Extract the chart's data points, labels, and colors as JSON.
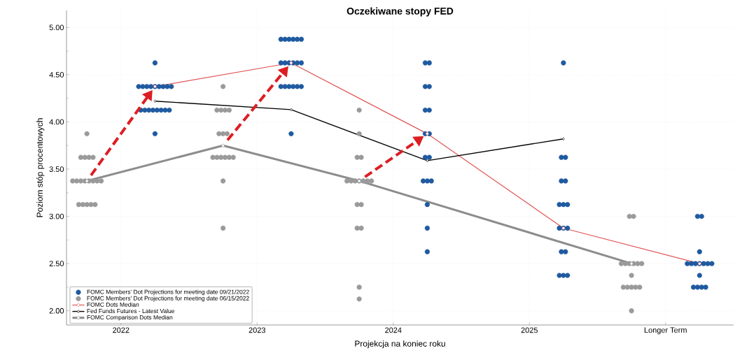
{
  "chart_data": {
    "type": "scatter",
    "title": "Oczekiwane stopy FED",
    "xlabel": "Projekcja na koniec roku",
    "ylabel": "Poziom stóp procentowych",
    "xlim": [
      2021.6,
      2026.5
    ],
    "ylim": [
      1.85,
      5.18
    ],
    "xticks": [
      2022,
      2023,
      2024,
      2025,
      {
        "value": 2026,
        "label": "Longer Term"
      }
    ],
    "yticks": [
      {
        "value": 2,
        "label": "2.00"
      },
      {
        "value": 2.5,
        "label": "2.50"
      },
      {
        "value": 3,
        "label": "3.00"
      },
      {
        "value": 3.5,
        "label": "3.50"
      },
      {
        "value": 4,
        "label": "4.00"
      },
      {
        "value": 4.5,
        "label": "4.50"
      },
      {
        "value": 5,
        "label": "5.00"
      }
    ],
    "grid": true,
    "legend": "bottom left",
    "series": [
      {
        "name": "FOMC Members' Dot Projections for meeting date 09/21/2022",
        "marker": "circle",
        "color": "#1f5aa0",
        "x": [
          2022.25,
          2022.13,
          2022.16,
          2022.19,
          2022.22,
          2022.25,
          2022.28,
          2022.31,
          2022.34,
          2022.37,
          2022.145,
          2022.175,
          2022.205,
          2022.235,
          2022.265,
          2022.295,
          2022.325,
          2022.355,
          2022.25,
          2023.175,
          2023.205,
          2023.235,
          2023.265,
          2023.295,
          2023.325,
          2023.175,
          2023.205,
          2023.235,
          2023.265,
          2023.295,
          2023.325,
          2023.175,
          2023.205,
          2023.235,
          2023.265,
          2023.295,
          2023.325,
          2023.25,
          2024.235,
          2024.265,
          2024.235,
          2024.265,
          2024.235,
          2024.265,
          2024.235,
          2024.265,
          2024.235,
          2024.265,
          2024.22,
          2024.25,
          2024.28,
          2024.25,
          2024.25,
          2024.25,
          2025.25,
          2025.235,
          2025.265,
          2025.235,
          2025.265,
          2025.22,
          2025.25,
          2025.28,
          2025.22,
          2025.25,
          2025.28,
          2025.235,
          2025.265,
          2025.22,
          2025.25,
          2025.28,
          2026.235,
          2026.265,
          2026.25,
          2026.16,
          2026.19,
          2026.22,
          2026.25,
          2026.28,
          2026.31,
          2026.34,
          2026.25,
          2026.205,
          2026.235,
          2026.265,
          2026.295
        ],
        "values": [
          4.625,
          4.375,
          4.375,
          4.375,
          4.375,
          4.375,
          4.375,
          4.375,
          4.375,
          4.375,
          4.125,
          4.125,
          4.125,
          4.125,
          4.125,
          4.125,
          4.125,
          4.125,
          3.875,
          4.875,
          4.875,
          4.875,
          4.875,
          4.875,
          4.875,
          4.625,
          4.625,
          4.625,
          4.625,
          4.625,
          4.625,
          4.375,
          4.375,
          4.375,
          4.375,
          4.375,
          4.375,
          3.875,
          4.625,
          4.625,
          4.375,
          4.375,
          4.125,
          4.125,
          3.875,
          3.875,
          3.625,
          3.625,
          3.375,
          3.375,
          3.375,
          3.125,
          2.875,
          2.625,
          4.625,
          3.625,
          3.625,
          3.375,
          3.375,
          3.125,
          3.125,
          3.125,
          2.875,
          2.875,
          2.875,
          2.625,
          2.625,
          2.375,
          2.375,
          2.375,
          3.0,
          3.0,
          2.625,
          2.5,
          2.5,
          2.5,
          2.5,
          2.5,
          2.5,
          2.5,
          2.375,
          2.25,
          2.25,
          2.25,
          2.25
        ]
      },
      {
        "name": "FOMC Members' Dot Projections for meeting date 06/15/2022",
        "marker": "circle",
        "color": "#9a9a9a",
        "x": [
          2021.75,
          2021.705,
          2021.735,
          2021.765,
          2021.795,
          2021.645,
          2021.675,
          2021.705,
          2021.735,
          2021.765,
          2021.795,
          2021.825,
          2021.855,
          2021.69,
          2021.72,
          2021.75,
          2021.78,
          2021.81,
          2022.75,
          2022.705,
          2022.735,
          2022.765,
          2022.795,
          2022.72,
          2022.75,
          2022.78,
          2022.675,
          2022.705,
          2022.735,
          2022.765,
          2022.795,
          2022.825,
          2022.75,
          2022.75,
          2023.75,
          2023.75,
          2023.735,
          2023.765,
          2023.66,
          2023.69,
          2023.72,
          2023.75,
          2023.78,
          2023.81,
          2023.84,
          2023.735,
          2023.765,
          2023.735,
          2023.765,
          2023.75,
          2023.75,
          2025.735,
          2025.765,
          2025.675,
          2025.705,
          2025.735,
          2025.765,
          2025.795,
          2025.825,
          2025.75,
          2025.69,
          2025.72,
          2025.75,
          2025.78,
          2025.81,
          2025.75
        ],
        "values": [
          3.875,
          3.625,
          3.625,
          3.625,
          3.625,
          3.375,
          3.375,
          3.375,
          3.375,
          3.375,
          3.375,
          3.375,
          3.375,
          3.125,
          3.125,
          3.125,
          3.125,
          3.125,
          4.375,
          4.125,
          4.125,
          4.125,
          4.125,
          3.875,
          3.875,
          3.875,
          3.625,
          3.625,
          3.625,
          3.625,
          3.625,
          3.625,
          3.375,
          2.875,
          4.125,
          3.875,
          3.625,
          3.625,
          3.375,
          3.375,
          3.375,
          3.375,
          3.375,
          3.375,
          3.375,
          3.125,
          3.125,
          2.875,
          2.875,
          2.25,
          2.125,
          3.0,
          3.0,
          2.5,
          2.5,
          2.5,
          2.5,
          2.5,
          2.5,
          2.375,
          2.25,
          2.25,
          2.25,
          2.25,
          2.25,
          2.0
        ]
      },
      {
        "name": "FOMC Dots Median",
        "type": "line",
        "marker": "circle",
        "color": "#e05555",
        "x": [
          2022.25,
          2023.25,
          2024.25,
          2025.25,
          2026.25
        ],
        "values": [
          4.375,
          4.625,
          3.875,
          2.875,
          2.5
        ]
      },
      {
        "name": "Fed Funds Futures - Latest Value",
        "type": "line",
        "marker": "diamond",
        "color": "#000000",
        "x": [
          2022.25,
          2023.25,
          2024.25,
          2025.25
        ],
        "values": [
          4.22,
          4.13,
          3.59,
          3.82
        ]
      },
      {
        "name": "FOMC Comparison Dots Median",
        "type": "line",
        "marker": "circle",
        "color": "#8c8c8c",
        "x": [
          2021.75,
          2022.75,
          2023.75,
          2025.75
        ],
        "values": [
          3.375,
          3.75,
          3.375,
          2.5
        ]
      }
    ]
  }
}
